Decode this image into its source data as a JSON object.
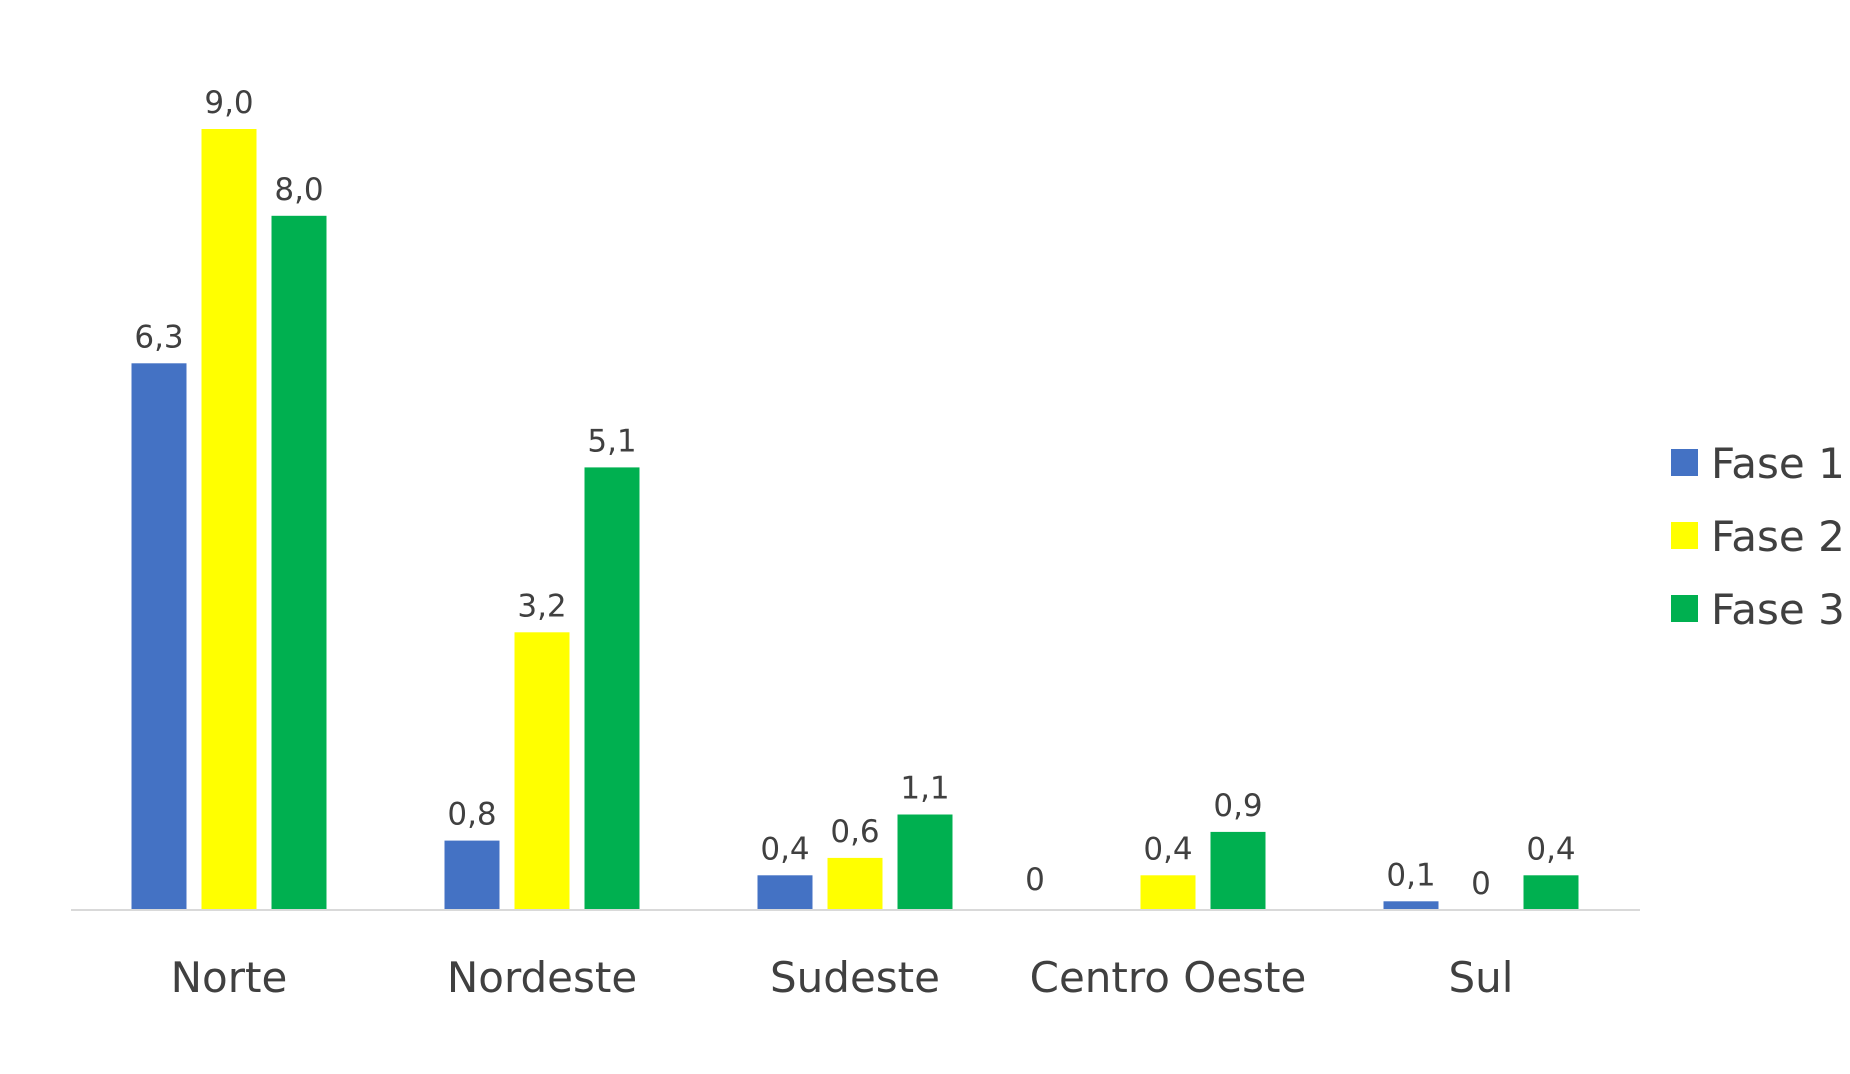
{
  "chart_data": {
    "type": "bar",
    "title": "",
    "xlabel": "",
    "ylabel": "",
    "ylim": [
      0,
      9
    ],
    "grid": false,
    "legend_position": "right",
    "categories": [
      "Norte",
      "Nordeste",
      "Sudeste",
      "Centro Oeste",
      "Sul"
    ],
    "series": [
      {
        "name": "Fase 1",
        "color": "#4472C4",
        "values": [
          6.3,
          0.8,
          0.4,
          0,
          0.1
        ],
        "labels": [
          "6,3",
          "0,8",
          "0,4",
          "",
          "0,1"
        ]
      },
      {
        "name": "Fase 2",
        "color": "#FFFF00",
        "values": [
          9.0,
          3.2,
          0.6,
          0.4,
          0
        ],
        "labels": [
          "9,0",
          "3,2",
          "0,6",
          "0,4",
          "0"
        ]
      },
      {
        "name": "Fase 3",
        "color": "#00B050",
        "values": [
          8.0,
          5.1,
          1.1,
          0.9,
          0.4
        ],
        "labels": [
          "8,0",
          "5,1",
          "1,1",
          "0,9",
          "0,4"
        ]
      }
    ],
    "extra_labels": [
      {
        "category_index": 3,
        "text": "0"
      }
    ]
  }
}
